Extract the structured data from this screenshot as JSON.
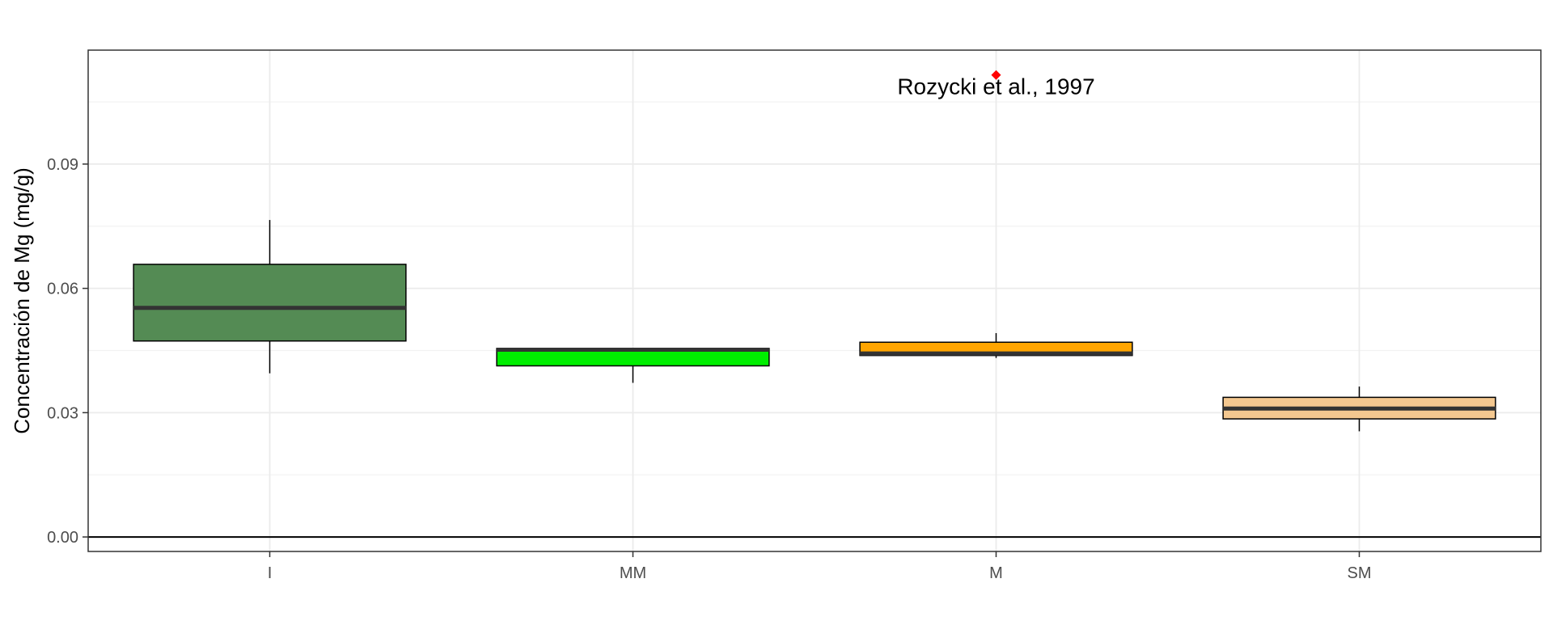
{
  "chart_data": {
    "type": "box",
    "title": "",
    "xlabel": "",
    "ylabel": "Concentración de Mg (mg/g)",
    "ylim": [
      -0.0035,
      0.1175
    ],
    "yticks": [
      0.0,
      0.03,
      0.06,
      0.09
    ],
    "ytick_labels": [
      "0.00",
      "0.03",
      "0.06",
      "0.09"
    ],
    "grid": true,
    "hline": 0,
    "categories": [
      "I",
      "MM",
      "M",
      "SM"
    ],
    "boxes": [
      {
        "category": "I",
        "whisker_low": 0.0395,
        "q1": 0.0473,
        "median": 0.0553,
        "q3": 0.0658,
        "whisker_high": 0.0765,
        "color": "#548B54"
      },
      {
        "category": "MM",
        "whisker_low": 0.0372,
        "q1": 0.0413,
        "median": 0.0452,
        "q3": 0.0455,
        "whisker_high": 0.0455,
        "color": "#00EE00"
      },
      {
        "category": "M",
        "whisker_low": 0.0432,
        "q1": 0.0438,
        "median": 0.0443,
        "q3": 0.047,
        "whisker_high": 0.0492,
        "color": "#FFA500"
      },
      {
        "category": "SM",
        "whisker_low": 0.0255,
        "q1": 0.0285,
        "median": 0.031,
        "q3": 0.0337,
        "whisker_high": 0.0363,
        "color": "#F4C890"
      }
    ],
    "reference_point": {
      "category": "M",
      "value": 0.1115,
      "color": "#FF0000",
      "label": "Rozycki et al., 1997"
    }
  }
}
